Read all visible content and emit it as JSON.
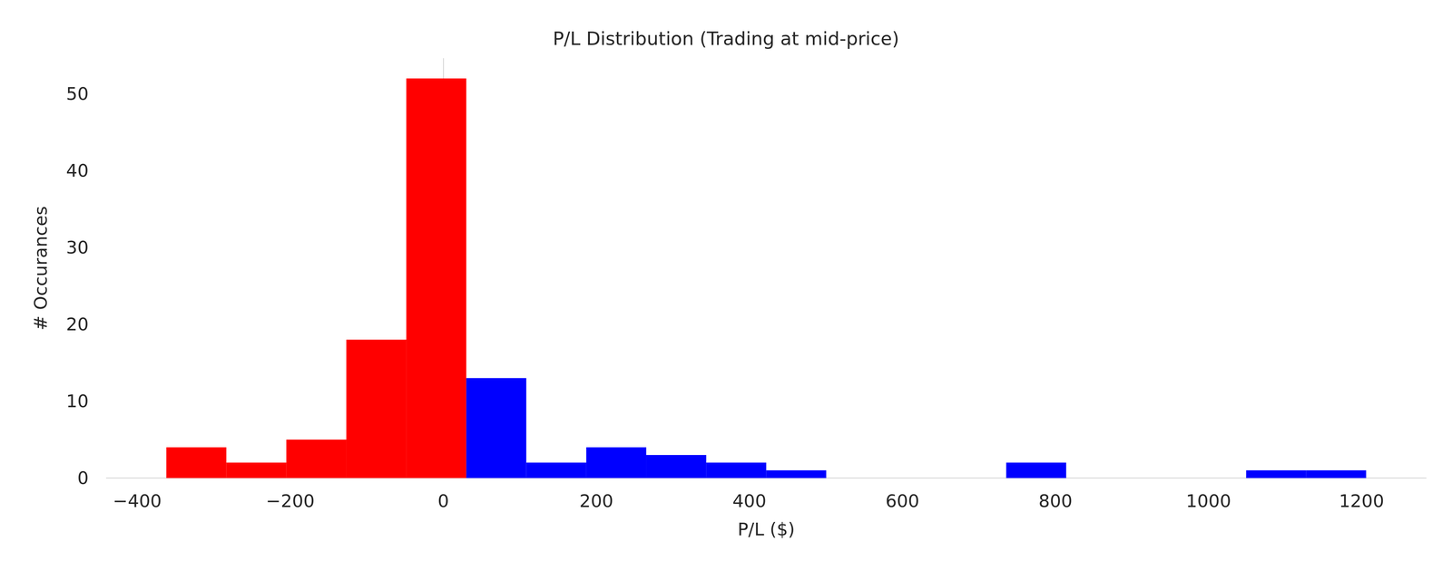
{
  "chart_data": {
    "type": "histogram",
    "title": "P/L Distribution (Trading at mid-price)",
    "xlabel": "P/L ($)",
    "ylabel": "# Occurances",
    "bins": [
      -362,
      -283.6,
      -205.2,
      -126.8,
      -48.4,
      30,
      108.4,
      186.8,
      265.2,
      343.6,
      422,
      500.4,
      578.8,
      657.2,
      735.6,
      814,
      892.4,
      970.8,
      1049.2,
      1127.6,
      1206
    ],
    "counts": [
      4,
      2,
      5,
      18,
      52,
      13,
      2,
      4,
      3,
      2,
      1,
      0,
      0,
      0,
      2,
      0,
      0,
      0,
      1,
      1
    ],
    "colors": [
      "#ff0000",
      "#ff0000",
      "#ff0000",
      "#ff0000",
      "#ff0000",
      "#0000ff",
      "#0000ff",
      "#0000ff",
      "#0000ff",
      "#0000ff",
      "#0000ff",
      "#0000ff",
      "#0000ff",
      "#0000ff",
      "#0000ff",
      "#0000ff",
      "#0000ff",
      "#0000ff",
      "#0000ff",
      "#0000ff"
    ],
    "xlim": [
      -440.4,
      1284.4
    ],
    "ylim": [
      0,
      54.6
    ],
    "xticks": [
      {
        "value": -400,
        "label": "−400"
      },
      {
        "value": -200,
        "label": "−200"
      },
      0,
      200,
      400,
      600,
      800,
      1000,
      1200
    ],
    "yticks": [
      0,
      10,
      20,
      30,
      40,
      50
    ],
    "grid": false
  }
}
